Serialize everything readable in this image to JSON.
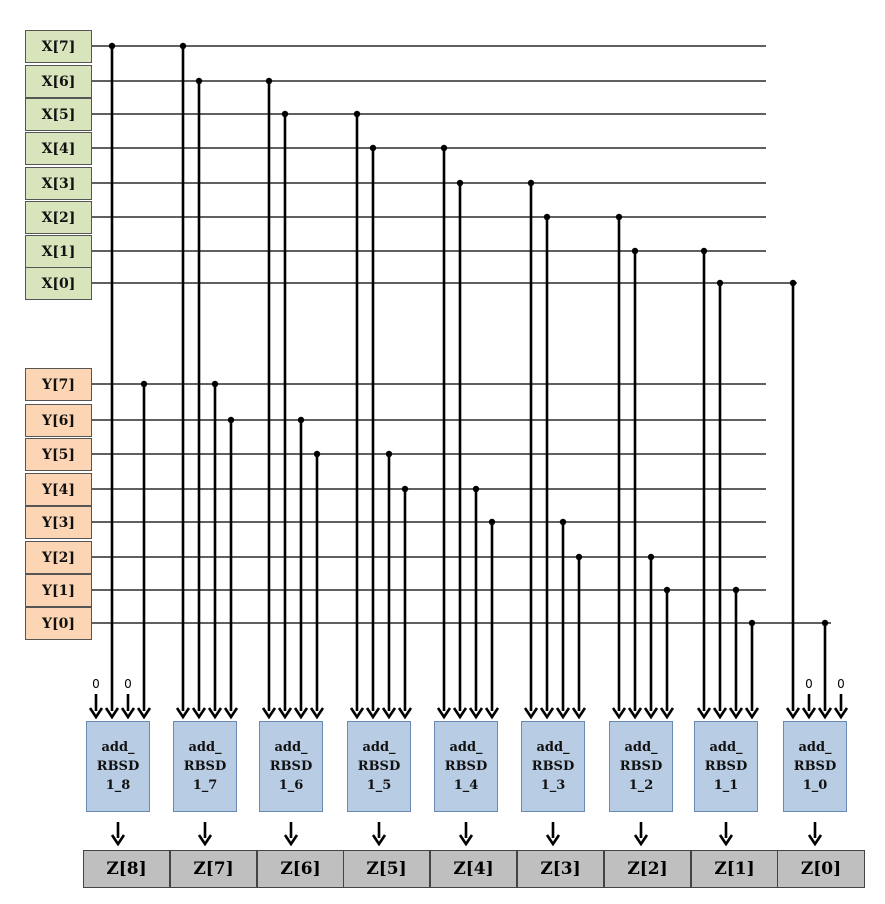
{
  "x_inputs": [
    "X[7]",
    "X[6]",
    "X[5]",
    "X[4]",
    "X[3]",
    "X[2]",
    "X[1]",
    "X[0]"
  ],
  "y_inputs": [
    "Y[7]",
    "Y[6]",
    "Y[5]",
    "Y[4]",
    "Y[3]",
    "Y[2]",
    "Y[1]",
    "Y[0]"
  ],
  "adders": [
    [
      "add_",
      "RBSD",
      "1_8"
    ],
    [
      "add_",
      "RBSD",
      "1_7"
    ],
    [
      "add_",
      "RBSD",
      "1_6"
    ],
    [
      "add_",
      "RBSD",
      "1_5"
    ],
    [
      "add_",
      "RBSD",
      "1_4"
    ],
    [
      "add_",
      "RBSD",
      "1_3"
    ],
    [
      "add_",
      "RBSD",
      "1_2"
    ],
    [
      "add_",
      "RBSD",
      "1_1"
    ],
    [
      "add_",
      "RBSD",
      "1_0"
    ]
  ],
  "outputs": [
    "Z[8]",
    "Z[7]",
    "Z[6]",
    "Z[5]",
    "Z[4]",
    "Z[3]",
    "Z[2]",
    "Z[1]",
    "Z[0]"
  ],
  "zero_label": "0",
  "colors": {
    "x_fill": "#d8e4bc",
    "y_fill": "#fcd5b4",
    "adder_fill": "#b8cce4",
    "output_fill": "#bfbfbf",
    "wire": "#000000"
  }
}
